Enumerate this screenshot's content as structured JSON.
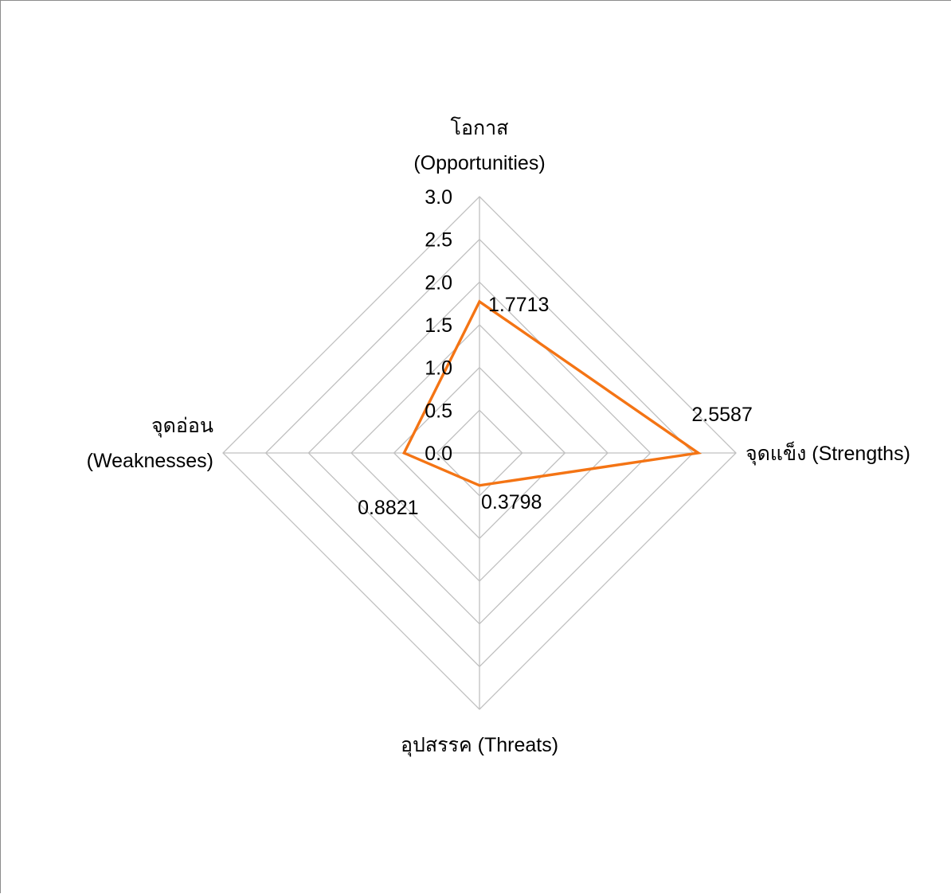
{
  "chart_data": {
    "type": "radar",
    "title": "",
    "axes": [
      {
        "lines": [
          "โอกาส",
          "(Opportunities)"
        ]
      },
      {
        "lines": [
          "จุดแข็ง (Strengths)"
        ]
      },
      {
        "lines": [
          "อุปสรรค (Threats)"
        ]
      },
      {
        "lines": [
          "จุดอ่อน",
          "(Weaknesses)"
        ]
      }
    ],
    "categories": [
      "โอกาส (Opportunities)",
      "จุดแข็ง (Strengths)",
      "อุปสรรค (Threats)",
      "จุดอ่อน (Weaknesses)"
    ],
    "series": [
      {
        "values": [
          1.7713,
          2.5587,
          0.3798,
          0.8821
        ],
        "data_labels": [
          "1.7713",
          "2.5587",
          "0.3798",
          "0.8821"
        ],
        "color": "#f47414"
      }
    ],
    "rlim": [
      0,
      3.0
    ],
    "ticks": [
      0,
      0.5,
      1.0,
      1.5,
      2.0,
      2.5,
      3.0
    ],
    "tick_labels": [
      "0.0",
      "0.5",
      "1.0",
      "1.5",
      "2.0",
      "2.5",
      "3.0"
    ],
    "grid": true,
    "grid_color": "#c0c0c0",
    "legend": "none"
  }
}
